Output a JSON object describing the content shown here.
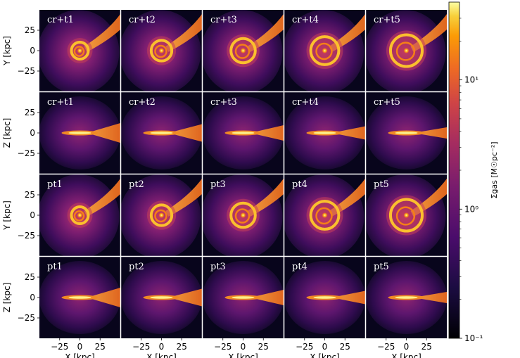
{
  "chart_data": {
    "type": "heatmap",
    "title": "",
    "grid": {
      "rows": 4,
      "cols": 5
    },
    "panel_labels": [
      [
        "cr+t1",
        "cr+t2",
        "cr+t3",
        "cr+t4",
        "cr+t5"
      ],
      [
        "cr+t1",
        "cr+t2",
        "cr+t3",
        "cr+t4",
        "cr+t5"
      ],
      [
        "pt1",
        "pt2",
        "pt3",
        "pt4",
        "pt5"
      ],
      [
        "pt1",
        "pt2",
        "pt3",
        "pt4",
        "pt5"
      ]
    ],
    "row_projection": [
      "face-on",
      "edge-on",
      "face-on",
      "edge-on"
    ],
    "ylabels": [
      "Y [kpc]",
      "Z [kpc]",
      "Y [kpc]",
      "Z [kpc]"
    ],
    "xlabel": "X [kpc]",
    "xlim": [
      -50,
      50
    ],
    "ylim": [
      -50,
      50
    ],
    "x_ticks": [
      -25,
      0,
      25
    ],
    "x_tick_labels": [
      "−25",
      "0",
      "25"
    ],
    "y_ticks": [
      25,
      0,
      -25
    ],
    "y_tick_labels": [
      "25",
      "0",
      "−25"
    ],
    "colorbar": {
      "label": "Σgas [M☉pc⁻²]",
      "scale": "log",
      "range": [
        0.1,
        40
      ],
      "ticks": [
        10,
        1,
        0.1
      ],
      "tick_labels": [
        "10¹",
        "10⁰",
        "10⁻¹"
      ],
      "colormap": "inferno"
    },
    "colors": {
      "background": "#000004",
      "separator": "#ffffff"
    }
  }
}
